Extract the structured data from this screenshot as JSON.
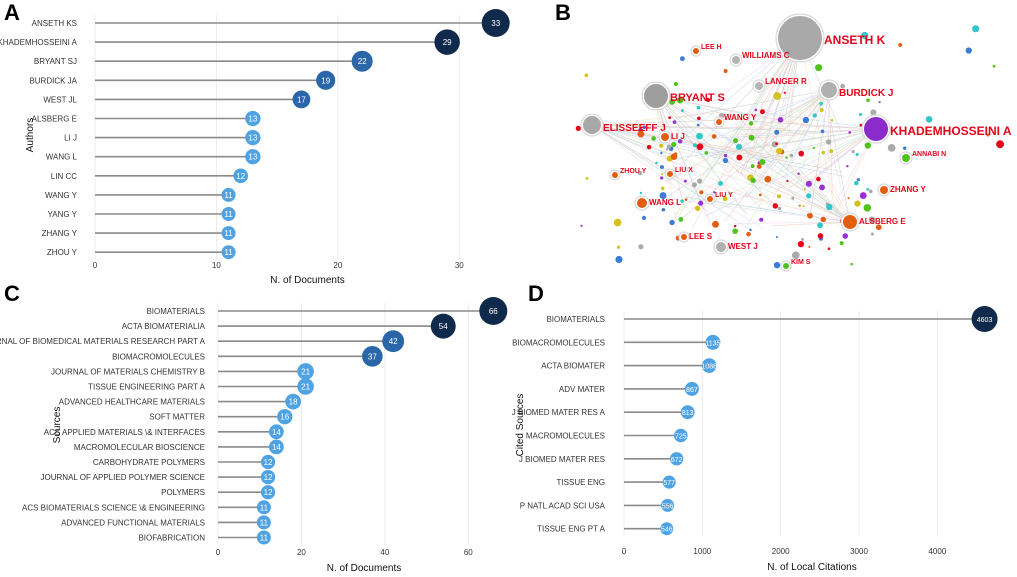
{
  "panels": {
    "a": "A",
    "b": "B",
    "c": "C",
    "d": "D"
  },
  "chart_data": [
    {
      "panel": "A",
      "type": "lollipop",
      "xlabel": "N. of Documents",
      "ylabel": "Authors",
      "xlim": [
        0,
        35
      ],
      "xticks": [
        "0",
        "10",
        "20",
        "30"
      ],
      "categories": [
        "ANSETH KS",
        "KHADEMHOSSEINI A",
        "BRYANT SJ",
        "BURDICK JA",
        "WEST JL",
        "ALSBERG E",
        "LI J",
        "WANG L",
        "LIN CC",
        "WANG Y",
        "YANG Y",
        "ZHANG Y",
        "ZHOU Y"
      ],
      "values": [
        33,
        29,
        22,
        19,
        17,
        13,
        13,
        13,
        12,
        11,
        11,
        11,
        11
      ],
      "value_labels": [
        "33",
        "29",
        "22",
        "19",
        "17",
        "13",
        "13",
        "13",
        "12",
        "11",
        "11",
        "11",
        "11"
      ]
    },
    {
      "panel": "C",
      "type": "lollipop",
      "xlabel": "N. of Documents",
      "ylabel": "Sources",
      "xlim": [
        0,
        70
      ],
      "xticks": [
        "0",
        "20",
        "40",
        "60"
      ],
      "categories": [
        "BIOMATERIALS",
        "ACTA BIOMATERIALIA",
        "JOURNAL OF BIOMEDICAL MATERIALS RESEARCH PART A",
        "BIOMACROMOLECULES",
        "JOURNAL OF MATERIALS CHEMISTRY B",
        "TISSUE ENGINEERING PART A",
        "ADVANCED HEALTHCARE MATERIALS",
        "SOFT MATTER",
        "ACS APPLIED MATERIALS \\& INTERFACES",
        "MACROMOLECULAR BIOSCIENCE",
        "CARBOHYDRATE POLYMERS",
        "JOURNAL OF APPLIED POLYMER SCIENCE",
        "POLYMERS",
        "ACS BIOMATERIALS SCIENCE \\& ENGINEERING",
        "ADVANCED FUNCTIONAL MATERIALS",
        "BIOFABRICATION"
      ],
      "values": [
        66,
        54,
        42,
        37,
        21,
        21,
        18,
        16,
        14,
        14,
        12,
        12,
        12,
        11,
        11,
        11
      ],
      "value_labels": [
        "66",
        "54",
        "42",
        "37",
        "21",
        "21",
        "18",
        "16",
        "14",
        "14",
        "12",
        "12",
        "12",
        "11",
        "11",
        "11"
      ]
    },
    {
      "panel": "D",
      "type": "lollipop",
      "xlabel": "N. of Local Citations",
      "ylabel": "Cited Sources",
      "xlim": [
        0,
        4800
      ],
      "xticks": [
        "0",
        "1000",
        "2000",
        "3000",
        "4000"
      ],
      "categories": [
        "BIOMATERIALS",
        "BIOMACROMOLECULES",
        "ACTA BIOMATER",
        "ADV MATER",
        "J BIOMED MATER RES A",
        "MACROMOLECULES",
        "J BIOMED MATER RES",
        "TISSUE ENG",
        "P NATL ACAD SCI USA",
        "TISSUE ENG PT A"
      ],
      "values": [
        4603,
        1135,
        1088,
        867,
        813,
        725,
        672,
        577,
        556,
        546
      ],
      "value_labels": [
        "4603",
        "1135",
        "1088",
        "867",
        "813",
        "725",
        "672",
        "577",
        "556",
        "546"
      ]
    },
    {
      "panel": "B",
      "type": "network",
      "nodes": [
        {
          "label": "ANSETH K",
          "weight": 33
        },
        {
          "label": "KHADEMHOSSEINI A",
          "weight": 29
        },
        {
          "label": "BRYANT S",
          "weight": 22
        },
        {
          "label": "ELISSEEFF J",
          "weight": 16
        },
        {
          "label": "BURDICK J",
          "weight": 15
        },
        {
          "label": "WILLIAMS C",
          "weight": 8
        },
        {
          "label": "LANGER R",
          "weight": 8
        },
        {
          "label": "LEE H",
          "weight": 6
        },
        {
          "label": "WANG Y",
          "weight": 6
        },
        {
          "label": "LI J",
          "weight": 6
        },
        {
          "label": "ANNABI N",
          "weight": 7
        },
        {
          "label": "ZHOU Y",
          "weight": 5
        },
        {
          "label": "LIU X",
          "weight": 5
        },
        {
          "label": "ZHANG Y",
          "weight": 8
        },
        {
          "label": "WANG L",
          "weight": 9
        },
        {
          "label": "LIU Y",
          "weight": 5
        },
        {
          "label": "ALSBERG E",
          "weight": 12
        },
        {
          "label": "LEE S",
          "weight": 6
        },
        {
          "label": "WEST J",
          "weight": 9
        },
        {
          "label": "KIM S",
          "weight": 6
        }
      ]
    }
  ],
  "colors": {
    "dark": "#0f2a4a",
    "mid": "#2b67a8",
    "light": "#4fa3e3",
    "stem": "#8a8a8a",
    "label_red": "#e3061b"
  }
}
